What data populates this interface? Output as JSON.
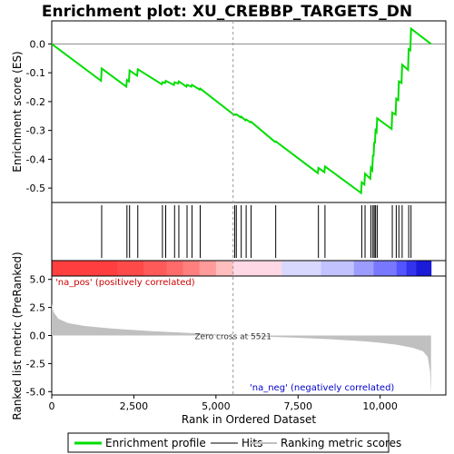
{
  "chart_data": {
    "type": "line",
    "title": "Enrichment plot: XU_CREBBP_TARGETS_DN",
    "xlabel": "Rank in Ordered Dataset",
    "xlim": [
      0,
      12000
    ],
    "xticks": [
      0,
      2500,
      5000,
      7500,
      10000
    ],
    "xtick_labels": [
      "0",
      "2,500",
      "5,000",
      "7,500",
      "10,000"
    ],
    "es_panel": {
      "ylabel": "Enrichment score (ES)",
      "ylim": [
        -0.55,
        0.08
      ],
      "yticks": [
        0.0,
        -0.1,
        -0.2,
        -0.3,
        -0.4,
        -0.5
      ],
      "ytick_labels": [
        "0.0",
        "-0.1",
        "-0.2",
        "-0.3",
        "-0.4",
        "-0.5"
      ],
      "series": [
        {
          "name": "Enrichment profile",
          "color": "#00dd00",
          "x": [
            0,
            1500,
            1520,
            2270,
            2290,
            2350,
            2370,
            2600,
            2620,
            3350,
            3370,
            3450,
            3470,
            3720,
            3740,
            3850,
            3870,
            4100,
            4120,
            4250,
            4270,
            4500,
            4520,
            5550,
            5570,
            5600,
            5620,
            5750,
            5770,
            5900,
            5920,
            6050,
            6070,
            6800,
            6820,
            8100,
            8120,
            8300,
            8320,
            9420,
            9440,
            9520,
            9540,
            9700,
            9720,
            9760,
            9780,
            9800,
            9820,
            9840,
            9860,
            9890,
            9910,
            10350,
            10370,
            10470,
            10490,
            10550,
            10570,
            10650,
            10670,
            10850,
            10870,
            10920,
            10940,
            11550
          ],
          "y": [
            0.0,
            -0.128,
            -0.085,
            -0.148,
            -0.125,
            -0.13,
            -0.092,
            -0.11,
            -0.088,
            -0.14,
            -0.133,
            -0.135,
            -0.128,
            -0.142,
            -0.133,
            -0.137,
            -0.13,
            -0.148,
            -0.142,
            -0.148,
            -0.142,
            -0.158,
            -0.155,
            -0.246,
            -0.244,
            -0.246,
            -0.244,
            -0.255,
            -0.252,
            -0.265,
            -0.262,
            -0.272,
            -0.27,
            -0.34,
            -0.338,
            -0.448,
            -0.43,
            -0.445,
            -0.425,
            -0.517,
            -0.48,
            -0.488,
            -0.45,
            -0.467,
            -0.43,
            -0.438,
            -0.385,
            -0.39,
            -0.34,
            -0.345,
            -0.3,
            -0.305,
            -0.258,
            -0.295,
            -0.238,
            -0.245,
            -0.19,
            -0.195,
            -0.13,
            -0.135,
            -0.072,
            -0.09,
            -0.018,
            -0.022,
            0.053,
            0.0
          ]
        }
      ]
    },
    "hits": {
      "name": "Hits",
      "positions": [
        1520,
        2290,
        2370,
        2620,
        3370,
        3470,
        3740,
        3870,
        4120,
        4270,
        4520,
        5570,
        5620,
        5770,
        5920,
        6070,
        6820,
        8120,
        8320,
        9440,
        9540,
        9720,
        9780,
        9820,
        9860,
        9910,
        10370,
        10490,
        10570,
        10670,
        10870,
        10940
      ]
    },
    "color_bar": {
      "colors": [
        "#ff3f3f",
        "#ff4a4a",
        "#ff5a5a",
        "#ff6b6b",
        "#ff7f7f",
        "#ff9b9b",
        "#ffbdbd",
        "#ffd8e6",
        "#d8d8ff",
        "#c2c2ff",
        "#9c9cff",
        "#7878ff",
        "#5555ff",
        "#3333ee",
        "#1a1ad8"
      ],
      "stops": [
        0,
        2000,
        2800,
        3500,
        4000,
        4500,
        5000,
        5521,
        7000,
        8200,
        9200,
        9800,
        10500,
        10800,
        11100,
        11550
      ]
    },
    "metric_panel": {
      "ylabel": "Ranked list metric (PreRanked)",
      "ylim": [
        -5.3,
        5.3
      ],
      "yticks": [
        5.0,
        2.5,
        0.0,
        -2.5,
        -5.0
      ],
      "ytick_labels": [
        "5.0",
        "2.5",
        "0.0",
        "-2.5",
        "-5.0"
      ],
      "series": [
        {
          "name": "Ranking metric scores",
          "color": "#c0c0c0",
          "x": [
            0,
            50,
            200,
            500,
            1000,
            1500,
            2000,
            3000,
            4000,
            5000,
            5521,
            6500,
            7500,
            8500,
            9500,
            10000,
            10500,
            11000,
            11300,
            11450,
            11520,
            11550
          ],
          "y": [
            2.8,
            2.1,
            1.5,
            1.1,
            0.85,
            0.7,
            0.58,
            0.4,
            0.25,
            0.1,
            0.0,
            -0.1,
            -0.2,
            -0.33,
            -0.52,
            -0.65,
            -0.82,
            -1.1,
            -1.4,
            -1.9,
            -3.2,
            -5.2
          ]
        }
      ],
      "zero_cross_label": "Zero cross at 5521",
      "zero_cross_x": 5521,
      "pos_label": "'na_pos' (positively correlated)",
      "neg_label": "'na_neg' (negatively correlated)"
    },
    "legend": {
      "placement": "bottom",
      "items": [
        {
          "label": "Enrichment profile",
          "color": "#00dd00"
        },
        {
          "label": "Hits",
          "color": "#000000"
        },
        {
          "label": "Ranking metric scores",
          "color": "#c0c0c0"
        }
      ]
    }
  }
}
